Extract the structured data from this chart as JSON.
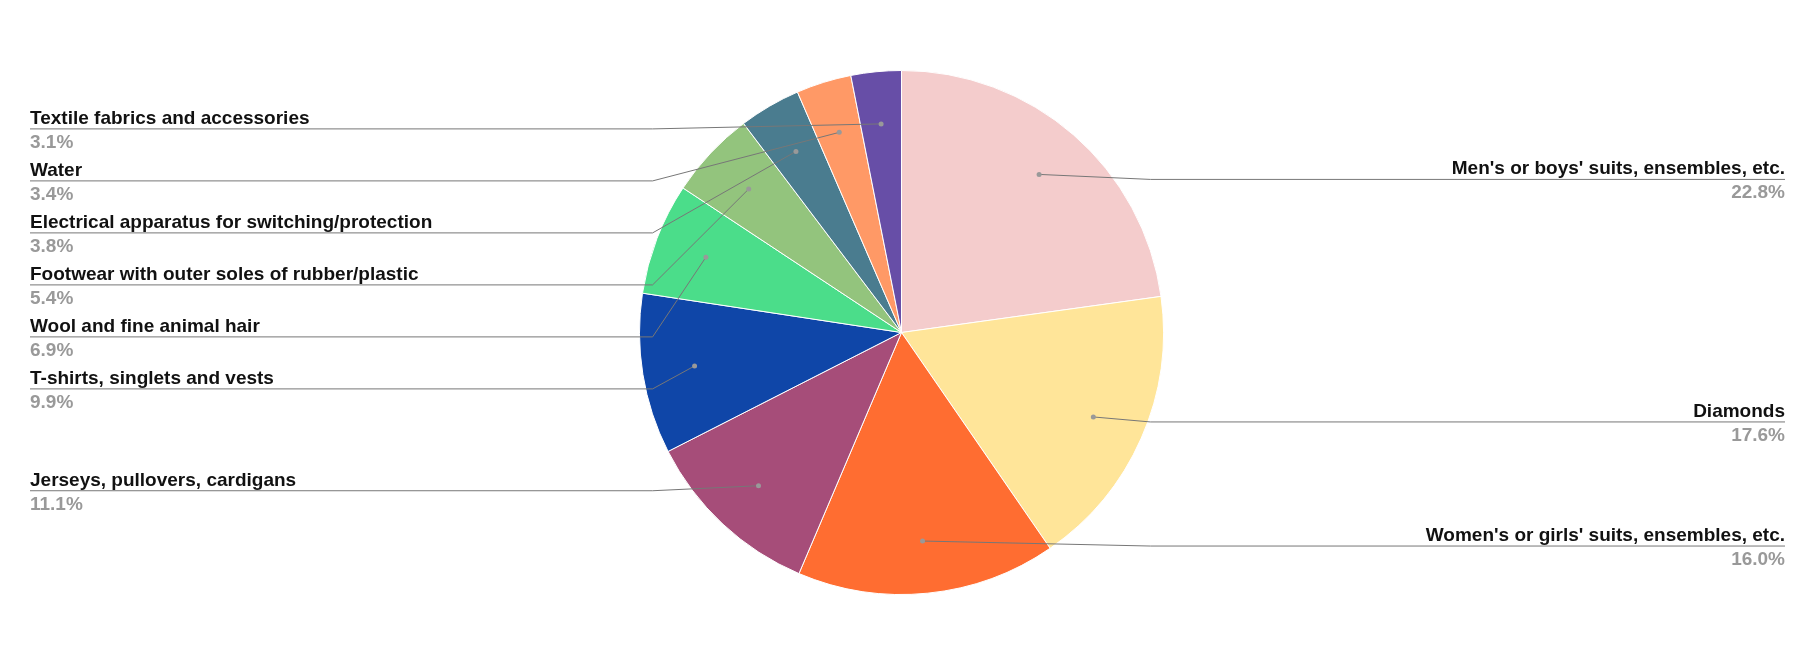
{
  "chart_data": {
    "type": "pie",
    "categories": [
      "Men's or boys' suits, ensembles, etc.",
      "Diamonds",
      "Women's or girls' suits, ensembles, etc.",
      "Jerseys, pullovers, cardigans",
      "T-shirts, singlets and vests",
      "Wool and fine animal hair",
      "Footwear with outer soles of rubber/plastic",
      "Electrical apparatus for switching/protection",
      "Water",
      "Textile fabrics and accessories"
    ],
    "values": [
      22.8,
      17.6,
      16.0,
      11.1,
      9.9,
      6.9,
      5.4,
      3.8,
      3.4,
      3.1
    ],
    "value_labels": [
      "22.8%",
      "17.6%",
      "16.0%",
      "11.1%",
      "9.9%",
      "6.9%",
      "5.4%",
      "3.8%",
      "3.4%",
      "3.1%"
    ],
    "colors": [
      "#f4cccc",
      "#ffe599",
      "#ff6d31",
      "#a64d79",
      "#0f46a8",
      "#4bdd8a",
      "#93c47d",
      "#4a7c8f",
      "#ff9966",
      "#674ea7"
    ],
    "legend": false
  }
}
